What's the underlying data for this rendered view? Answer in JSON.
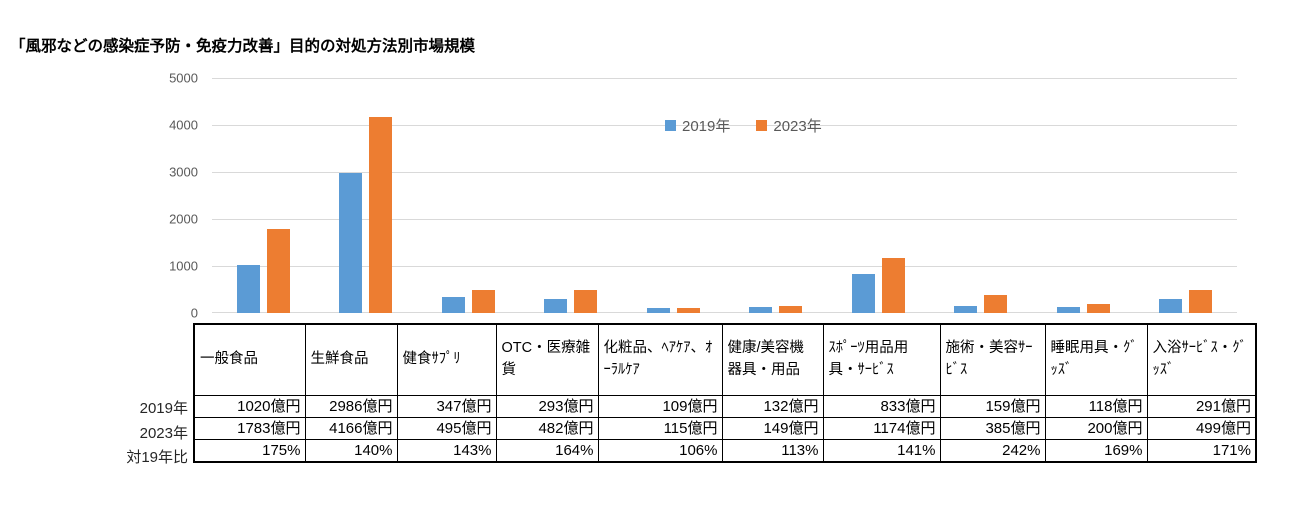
{
  "chart_data": {
    "type": "bar",
    "title": "「風邪などの感染症予防・免疫力改善」目的の対処方法別市場規模",
    "categories": [
      "一般食品",
      "生鮮食品",
      "健食ｻﾌﾟﾘ",
      "OTC・医療雑貨",
      "化粧品、ﾍｱｹｱ、ｵｰﾗﾙｹｱ",
      "健康/美容機器具・用品",
      "ｽﾎﾟｰﾂ用品用具・ｻｰﾋﾞｽ",
      "施術・美容ｻｰﾋﾞｽ",
      "睡眠用具・ｸﾞｯｽﾞ",
      "入浴ｻｰﾋﾞｽ・ｸﾞｯｽﾞ"
    ],
    "series": [
      {
        "name": "2019年",
        "color": "#5B9BD5",
        "values": [
          1020,
          2986,
          347,
          293,
          109,
          132,
          833,
          159,
          118,
          291
        ]
      },
      {
        "name": "2023年",
        "color": "#ED7D31",
        "values": [
          1783,
          4166,
          495,
          482,
          115,
          149,
          1174,
          385,
          200,
          499
        ]
      }
    ],
    "unit": "億円",
    "xlabel": "",
    "ylabel": "",
    "ylim": [
      0,
      5000
    ],
    "yticks": [
      "0",
      "1000",
      "2000",
      "3000",
      "4000",
      "5000"
    ],
    "grid": true,
    "legend_position": "inside-top-center"
  },
  "table": {
    "row_labels": [
      "2019年",
      "2023年",
      "対19年比"
    ],
    "rows": [
      [
        "1020億円",
        "2986億円",
        "347億円",
        "293億円",
        "109億円",
        "132億円",
        "833億円",
        "159億円",
        "118億円",
        "291億円"
      ],
      [
        "1783億円",
        "4166億円",
        "495億円",
        "482億円",
        "115億円",
        "149億円",
        "1174億円",
        "385億円",
        "200億円",
        "499億円"
      ],
      [
        "175%",
        "140%",
        "143%",
        "164%",
        "106%",
        "113%",
        "141%",
        "242%",
        "169%",
        "171%"
      ]
    ]
  },
  "colors": {
    "series_2019": "#5B9BD5",
    "series_2023": "#ED7D31",
    "gridline": "#D9D9D9",
    "axis_text": "#595959",
    "table_border": "#000000"
  }
}
